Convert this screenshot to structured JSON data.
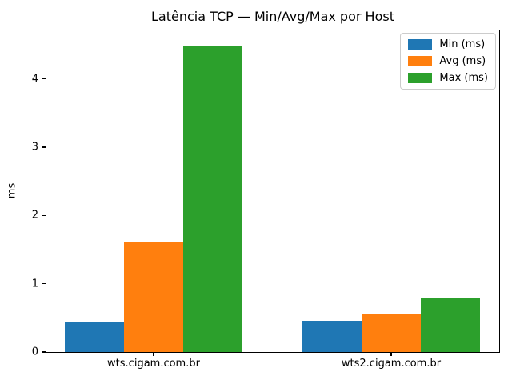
{
  "chart_data": {
    "type": "bar",
    "title": "Latência TCP — Min/Avg/Max por Host",
    "xlabel": "",
    "ylabel": "ms",
    "categories": [
      "wts.cigam.com.br",
      "wts2.cigam.com.br"
    ],
    "series": [
      {
        "name": "Min (ms)",
        "color": "#1f77b4",
        "values": [
          0.45,
          0.46
        ]
      },
      {
        "name": "Avg (ms)",
        "color": "#ff7f0e",
        "values": [
          1.62,
          0.56
        ]
      },
      {
        "name": "Max (ms)",
        "color": "#2ca02c",
        "values": [
          4.48,
          0.8
        ]
      }
    ],
    "yticks": [
      0,
      1,
      2,
      3,
      4
    ],
    "ylim": [
      0,
      4.71
    ],
    "grid": false,
    "legend_position": "upper right"
  }
}
